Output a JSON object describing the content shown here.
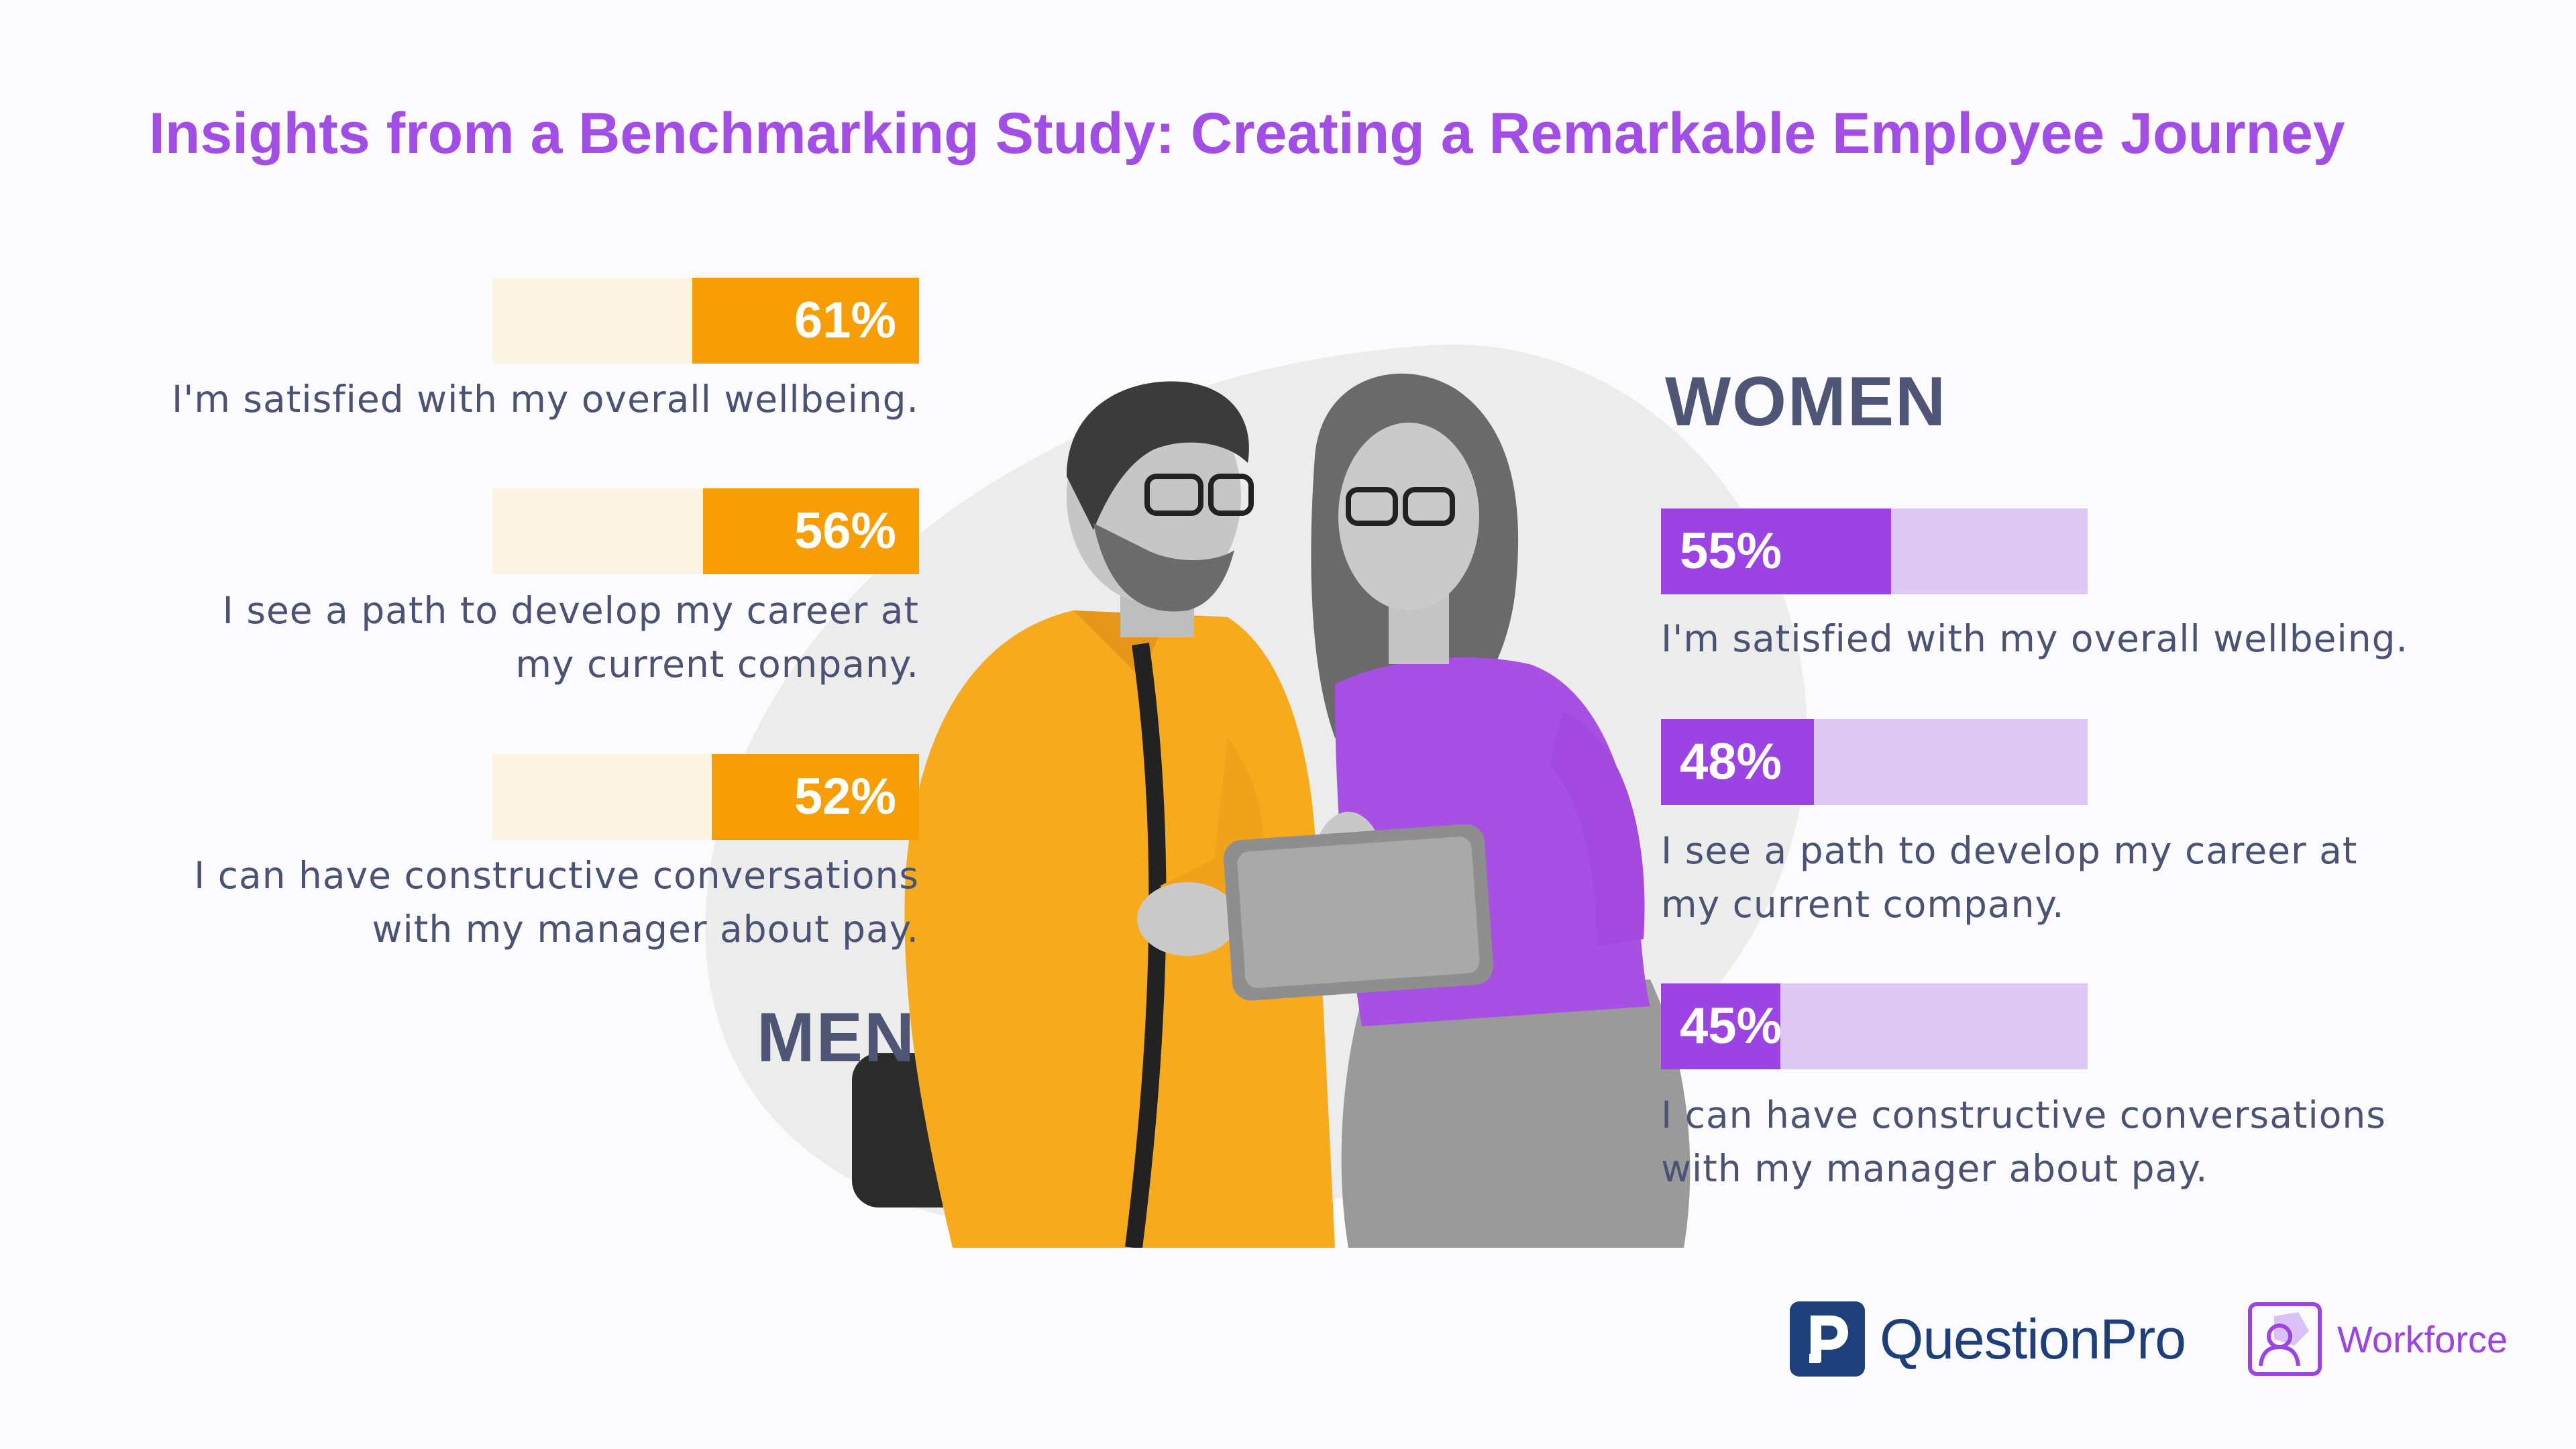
{
  "title": "Insights from a Benchmarking Study: Creating a Remarkable Employee Journey",
  "colors": {
    "title": "#a24ee6",
    "men_fill": "#f79e05",
    "men_track": "#fdf5e3",
    "women_fill": "#9b43e3",
    "women_track": "#dcc8f3",
    "text": "#4a5373"
  },
  "men": {
    "heading": "MEN",
    "items": [
      {
        "percent_label": "61%",
        "label": "I'm satisfied with my overall wellbeing."
      },
      {
        "percent_label": "56%",
        "label_line1": "I see a path to develop my career at",
        "label_line2": "my current company."
      },
      {
        "percent_label": "52%",
        "label_line1": "I can have constructive conversations",
        "label_line2": "with my manager about pay."
      }
    ]
  },
  "women": {
    "heading": "WOMEN",
    "items": [
      {
        "percent_label": "55%",
        "label": "I'm satisfied with my overall wellbeing."
      },
      {
        "percent_label": "48%",
        "label_line1": "I see a path to develop my career at",
        "label_line2": "my current company."
      },
      {
        "percent_label": "45%",
        "label_line1": "I can have constructive conversations",
        "label_line2": "with my manager about pay."
      }
    ]
  },
  "chart_data": {
    "type": "bar",
    "categories": [
      "I'm satisfied with my overall wellbeing.",
      "I see a path to develop my career at my current company.",
      "I can have constructive conversations with my manager about pay."
    ],
    "series": [
      {
        "name": "MEN",
        "values": [
          61,
          56,
          52
        ],
        "color": "#f79e05"
      },
      {
        "name": "WOMEN",
        "values": [
          55,
          48,
          45
        ],
        "color": "#9b43e3"
      }
    ],
    "ylim": [
      0,
      100
    ]
  },
  "logos": {
    "questionpro": "QuestionPro",
    "workforce": "Workforce"
  },
  "icons": {
    "questionpro": "questionpro-logo-icon",
    "workforce": "workforce-logo-icon"
  }
}
